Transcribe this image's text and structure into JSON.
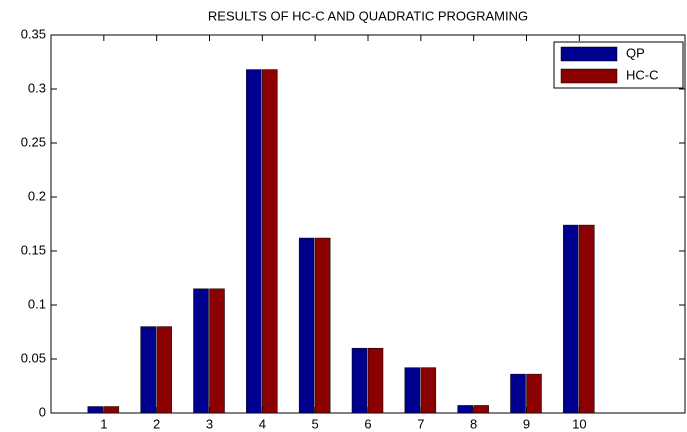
{
  "chart_data": {
    "type": "bar",
    "title": "RESULTS OF HC-C AND QUADRATIC PROGRAMING",
    "x": [
      1,
      2,
      3,
      4,
      5,
      6,
      7,
      8,
      9,
      10
    ],
    "series": [
      {
        "name": "QP",
        "color": "#00008f",
        "values": [
          0.006,
          0.08,
          0.115,
          0.318,
          0.162,
          0.06,
          0.042,
          0.007,
          0.036,
          0.174
        ]
      },
      {
        "name": "HC-C",
        "color": "#8b0000",
        "values": [
          0.006,
          0.08,
          0.115,
          0.318,
          0.162,
          0.06,
          0.042,
          0.007,
          0.036,
          0.174
        ]
      }
    ],
    "xlim": [
      0,
      12
    ],
    "xticks": [
      1,
      2,
      3,
      4,
      5,
      6,
      7,
      8,
      9,
      10
    ],
    "ylim": [
      0,
      0.35
    ],
    "yticks": [
      0,
      0.05,
      0.1,
      0.15,
      0.2,
      0.25,
      0.3,
      0.35
    ],
    "legend": "northeast",
    "grid": false
  }
}
